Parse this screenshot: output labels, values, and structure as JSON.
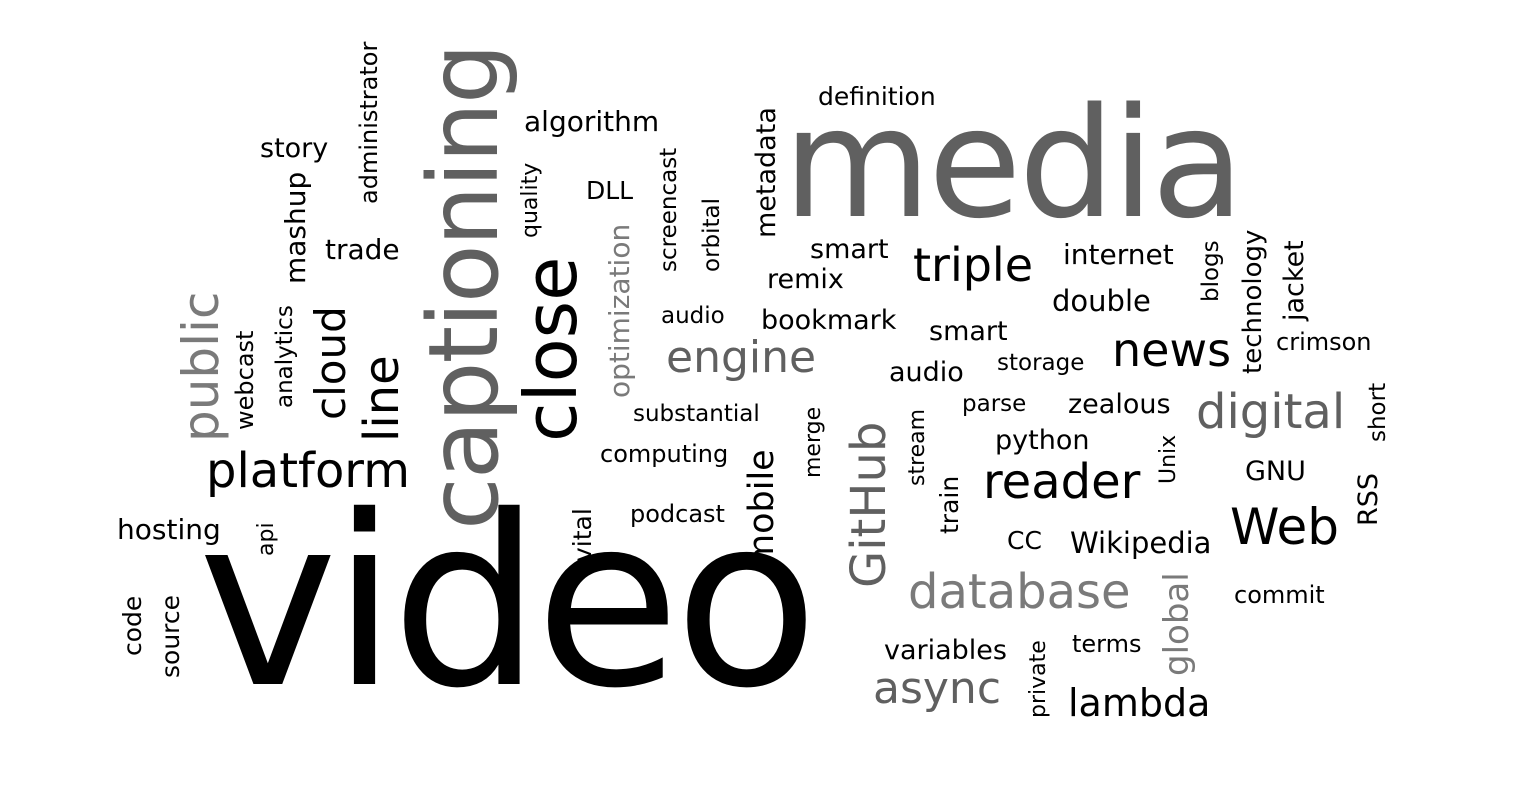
{
  "cloud": {
    "words": [
      "video",
      "media",
      "captioning",
      "close",
      "public",
      "cloud",
      "line",
      "platform",
      "engine",
      "triple",
      "news",
      "digital",
      "reader",
      "Web",
      "GitHub",
      "database",
      "async",
      "lambda",
      "mobile",
      "global",
      "algorithm",
      "definition",
      "story",
      "administrator",
      "mashup",
      "trade",
      "quality",
      "DLL",
      "screencast",
      "orbital",
      "metadata",
      "optimization",
      "smart",
      "remix",
      "internet",
      "double",
      "blogs",
      "technology",
      "jacket",
      "crimson",
      "audio",
      "bookmark",
      "smart",
      "storage",
      "audio",
      "webcast",
      "analytics",
      "substantial",
      "computing",
      "merge",
      "parse",
      "zealous",
      "python",
      "short",
      "stream",
      "Unix",
      "GNU",
      "RSS",
      "hosting",
      "api",
      "podcast",
      "vital",
      "train",
      "CC",
      "Wikipedia",
      "commit",
      "code",
      "source",
      "variables",
      "terms",
      "private"
    ]
  }
}
